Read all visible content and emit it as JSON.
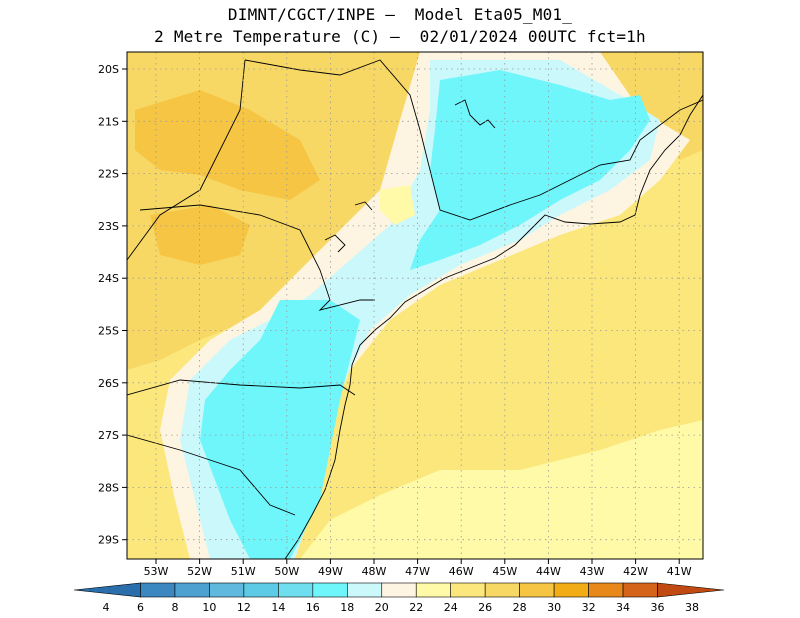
{
  "title_line1": "DIMNT/CGCT/INPE —  Model Eta05_M01_",
  "title_line2": "2 Metre Temperature (C) —  02/01/2024 00UTC fct=1h",
  "lat_labels": [
    "20S",
    "21S",
    "22S",
    "23S",
    "24S",
    "25S",
    "26S",
    "27S",
    "28S",
    "29S"
  ],
  "lon_labels": [
    "53W",
    "52W",
    "51W",
    "50W",
    "49W",
    "48W",
    "47W",
    "46W",
    "45W",
    "44W",
    "43W",
    "42W",
    "41W"
  ],
  "colorbar": {
    "ticks": [
      "4",
      "6",
      "8",
      "10",
      "12",
      "14",
      "16",
      "18",
      "20",
      "22",
      "24",
      "26",
      "28",
      "30",
      "32",
      "34",
      "36",
      "38"
    ],
    "colors": [
      "#2a6fab",
      "#3a88bf",
      "#4da1d0",
      "#5fb8dd",
      "#5dcbe6",
      "#6fdff0",
      "#6ff6fb",
      "#cbf8fb",
      "#fdf5e1",
      "#fefaa8",
      "#fbe77b",
      "#f8d865",
      "#f5c543",
      "#f2ad16",
      "#e8881b",
      "#d5641b",
      "#c04a12"
    ]
  },
  "map_colors": {
    "t16_18": "#6ff6fb",
    "t18_20": "#cbf8fb",
    "t20_22": "#fdf5e1",
    "t22_24": "#fefaa8",
    "t24_26": "#fbe77b",
    "t26_28": "#f8d865",
    "t28_30": "#f5c543"
  }
}
